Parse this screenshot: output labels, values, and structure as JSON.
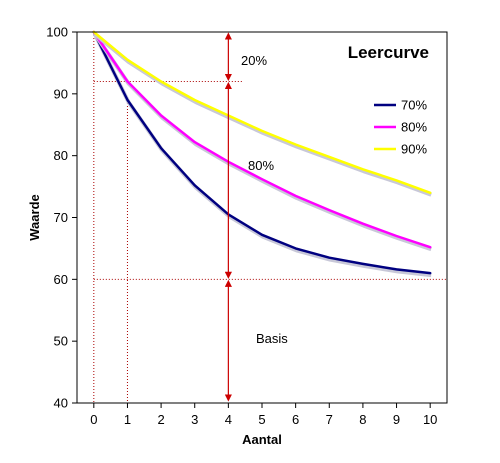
{
  "chart_data": {
    "type": "line",
    "title": "Leercurve",
    "xlabel": "Aantal",
    "ylabel": "Waarde",
    "xlim": [
      -0.5,
      10.5
    ],
    "ylim": [
      40,
      100
    ],
    "x_ticks": [
      0,
      1,
      2,
      3,
      4,
      5,
      6,
      7,
      8,
      9,
      10
    ],
    "y_ticks": [
      40,
      50,
      60,
      70,
      80,
      90,
      100
    ],
    "x": [
      0,
      1,
      2,
      3,
      4,
      5,
      6,
      7,
      8,
      9,
      10
    ],
    "series": [
      {
        "name": "70%",
        "color": "#000080",
        "values": [
          100,
          89,
          81.2,
          75.2,
          70.5,
          67.2,
          65,
          63.5,
          62.5,
          61.6,
          61
        ]
      },
      {
        "name": "80%",
        "color": "#ff00ff",
        "values": [
          100,
          92,
          86.5,
          82.2,
          79,
          76.2,
          73.5,
          71.2,
          69,
          67,
          65.2
        ]
      },
      {
        "name": "90%",
        "color": "#ffff00",
        "values": [
          100,
          95.5,
          92,
          89,
          86.5,
          84,
          81.8,
          79.8,
          77.8,
          76,
          74
        ]
      }
    ],
    "legend_position": "right",
    "grid": false,
    "reference_lines": {
      "horizontal": [
        92,
        60
      ],
      "vertical": [
        1,
        4
      ]
    },
    "annotations": [
      {
        "text": "20%"
      },
      {
        "text": "80%"
      },
      {
        "text": "Basis"
      }
    ]
  }
}
